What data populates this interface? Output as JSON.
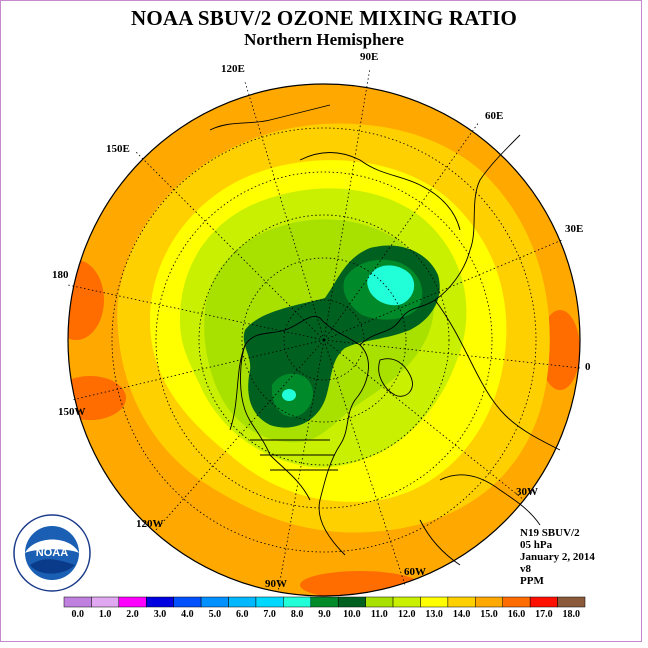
{
  "header": {
    "title": "NOAA SBUV/2 OZONE MIXING RATIO",
    "subtitle": "Northern Hemisphere"
  },
  "map": {
    "projection": "north polar stereographic",
    "longitude_labels": [
      {
        "id": "lon-90e",
        "text": "90E"
      },
      {
        "id": "lon-60e",
        "text": "60E"
      },
      {
        "id": "lon-30e",
        "text": "30E"
      },
      {
        "id": "lon-0",
        "text": "0"
      },
      {
        "id": "lon-30w",
        "text": "30W"
      },
      {
        "id": "lon-60w",
        "text": "60W"
      },
      {
        "id": "lon-90w",
        "text": "90W"
      },
      {
        "id": "lon-120w",
        "text": "120W"
      },
      {
        "id": "lon-150w",
        "text": "150W"
      },
      {
        "id": "lon-180",
        "text": "180"
      },
      {
        "id": "lon-150e",
        "text": "150E"
      },
      {
        "id": "lon-120e",
        "text": "120E"
      }
    ],
    "colors": {
      "c10_11": "#a8e000",
      "c11_12": "#c8f000",
      "c12_13": "#ffff00",
      "c13_14": "#ffd000",
      "c14_15": "#ffa800",
      "c15_16": "#ff6c00",
      "c9_10": "#006020",
      "c8_9": "#008a2a",
      "c7_8": "#20ffd8",
      "c6_7": "#00d8ff"
    }
  },
  "info": {
    "instrument": "N19 SBUV/2",
    "level": "05 hPa",
    "date": "January 2, 2014",
    "version": "v8",
    "units": "PPM"
  },
  "colorbar": {
    "labels": [
      "0.0",
      "1.0",
      "2.0",
      "3.0",
      "4.0",
      "5.0",
      "6.0",
      "7.0",
      "8.0",
      "9.0",
      "10.0",
      "11.0",
      "12.0",
      "13.0",
      "14.0",
      "15.0",
      "16.0",
      "17.0",
      "18.0"
    ],
    "colors": [
      "#c080e0",
      "#e0a8f0",
      "#ff00ff",
      "#0000e0",
      "#0050ff",
      "#0090ff",
      "#00b8ff",
      "#00d8ff",
      "#20ffd8",
      "#008a2a",
      "#006020",
      "#a8e000",
      "#c8f000",
      "#ffff00",
      "#ffd000",
      "#ffa800",
      "#ff6c00",
      "#ff1000",
      "#8a5a3a"
    ]
  },
  "logo": {
    "text": "NOAA",
    "ring_text": "NATIONAL OCEANIC AND ATMOSPHERIC ADMINISTRATION · U.S. DEPARTMENT OF COMMERCE"
  }
}
